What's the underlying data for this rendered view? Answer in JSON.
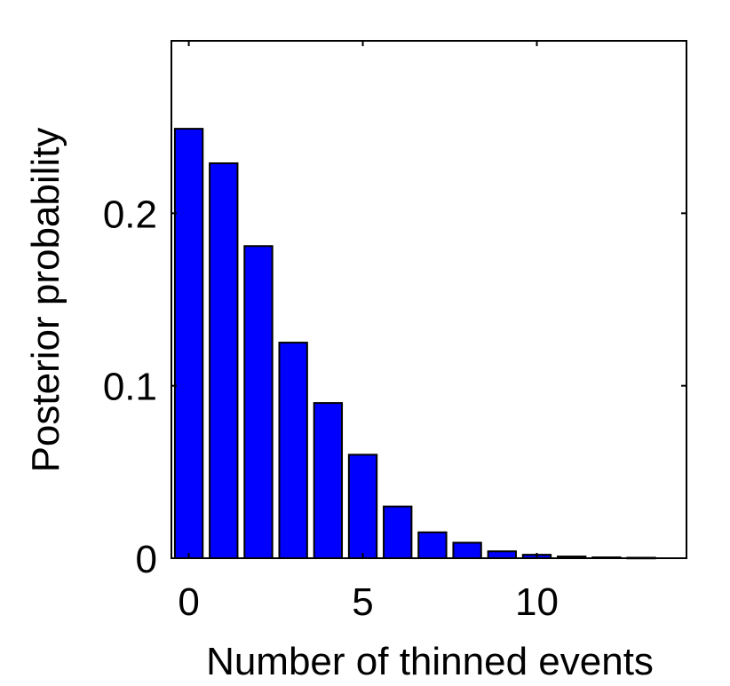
{
  "chart_data": {
    "type": "bar",
    "title": "",
    "xlabel": "Number of thinned events",
    "ylabel": "Posterior probability",
    "x": [
      0,
      1,
      2,
      3,
      4,
      5,
      6,
      7,
      8,
      9,
      10,
      11,
      12,
      13
    ],
    "values": [
      0.249,
      0.229,
      0.181,
      0.125,
      0.09,
      0.06,
      0.03,
      0.015,
      0.009,
      0.004,
      0.002,
      0.001,
      0.0005,
      0.0003
    ],
    "xlim": [
      -0.5,
      14.3
    ],
    "ylim": [
      0,
      0.3
    ],
    "xticks": [
      0,
      5,
      10
    ],
    "xtick_labels": [
      "0",
      "5",
      "10"
    ],
    "yticks": [
      0,
      0.1,
      0.2
    ],
    "ytick_labels": [
      "0",
      "0.1",
      "0.2"
    ],
    "grid": false,
    "legend": "none",
    "bar_color": "#0000ff",
    "edge_color": "#000000"
  }
}
